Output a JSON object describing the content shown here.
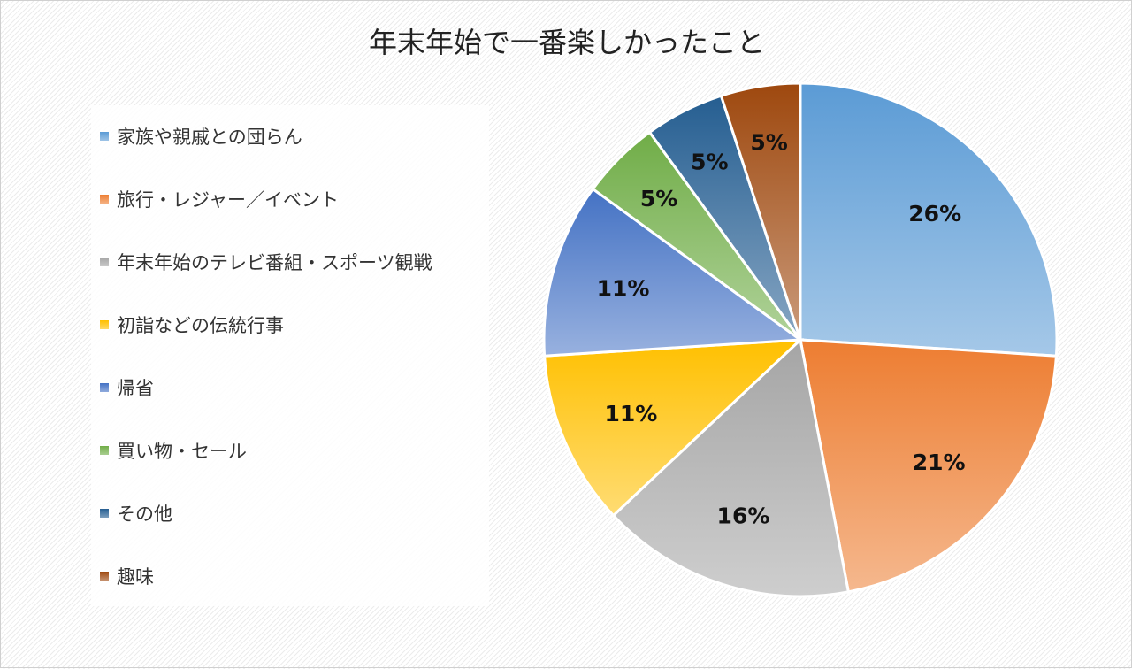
{
  "chart_data": {
    "type": "pie",
    "title": "年末年始で一番楽しかったこと",
    "categories": [
      "家族や親戚との団らん",
      "旅行・レジャー／イベント",
      "年末年始のテレビ番組・スポーツ観戦",
      "初詣などの伝統行事",
      "帰省",
      "買い物・セール",
      "その他",
      "趣味"
    ],
    "values": [
      26,
      21,
      16,
      11,
      11,
      5,
      5,
      5
    ],
    "labels": [
      "26%",
      "21%",
      "16%",
      "11%",
      "11%",
      "5%",
      "5%",
      "5%"
    ],
    "colors": [
      "#5b9bd5",
      "#ed7d31",
      "#a5a5a5",
      "#ffc000",
      "#4472c4",
      "#70ad47",
      "#255e91",
      "#9e480e"
    ],
    "legend_position": "left"
  }
}
